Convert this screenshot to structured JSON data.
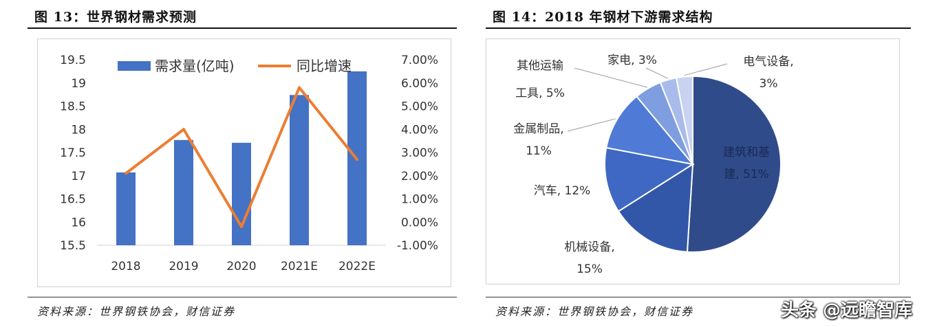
{
  "left": {
    "title": "图 13：世界钢材需求预测",
    "source": "资料来源：世界钢铁协会，财信证券"
  },
  "right": {
    "title": "图 14：2018 年钢材下游需求结构",
    "source": "资料来源：世界钢铁协会，财信证券"
  },
  "watermark": "头条 @远瞻智库",
  "colors": {
    "bar": "#4472C4",
    "line": "#ED7D31",
    "pie": [
      "#2F4B8A",
      "#3357A8",
      "#3F68C4",
      "#4F7AD6",
      "#7F9EE0",
      "#A9BBEA",
      "#C8D3F1"
    ]
  },
  "chart_data": [
    {
      "type": "bar",
      "title": "",
      "categories": [
        "2018",
        "2019",
        "2020",
        "2021E",
        "2022E"
      ],
      "series": [
        {
          "name": "需求量(亿吨)",
          "type": "bar",
          "axis": "left",
          "values": [
            17.07,
            17.77,
            17.71,
            18.74,
            19.25
          ]
        },
        {
          "name": "同比增速",
          "type": "line",
          "axis": "right",
          "values": [
            2.1,
            4.0,
            -0.2,
            5.8,
            2.7
          ]
        }
      ],
      "yaxis_left": {
        "ticks": [
          "15.5",
          "16",
          "16.5",
          "17",
          "17.5",
          "18",
          "18.5",
          "19",
          "19.5"
        ],
        "range": [
          15.5,
          19.5
        ]
      },
      "yaxis_right": {
        "ticks": [
          "-1.00%",
          "0.00%",
          "1.00%",
          "2.00%",
          "3.00%",
          "4.00%",
          "5.00%",
          "6.00%",
          "7.00%"
        ],
        "range": [
          -1,
          7
        ]
      },
      "legend": "top",
      "grid": false
    },
    {
      "type": "pie",
      "title": "",
      "slices": [
        {
          "label": "建筑和基建, 51%",
          "value": 51
        },
        {
          "label": "机械设备, 15%",
          "value": 15
        },
        {
          "label": "汽车, 12%",
          "value": 12
        },
        {
          "label": "金属制品, 11%",
          "value": 11
        },
        {
          "label": "其他运输工具, 5%",
          "value": 5
        },
        {
          "label": "家电, 3%",
          "value": 3
        },
        {
          "label": "电气设备, 3%",
          "value": 3
        }
      ]
    }
  ]
}
